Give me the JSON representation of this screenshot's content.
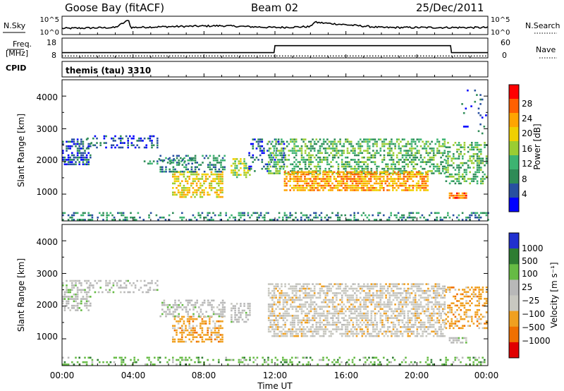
{
  "header": {
    "station": "Goose Bay (fitACF)",
    "beam": "Beam 02",
    "date": "25/Dec/2011"
  },
  "noise_panel": {
    "left_label": "N.Sky",
    "right_label": "N.Search",
    "left_ticks": [
      "10^5",
      "10^0"
    ],
    "right_ticks": [
      "10^5",
      "10^0"
    ]
  },
  "freq_panel": {
    "left_label_line1": "Freq.",
    "left_label_line2": "[MHz]",
    "right_label": "Nave",
    "left_ticks": [
      "18",
      "8"
    ],
    "right_ticks": [
      "60",
      "0"
    ]
  },
  "cpid": {
    "label": "CPID",
    "value": "themis (tau) 3310"
  },
  "time_axis": {
    "label": "Time UT",
    "ticks": [
      "00:00",
      "04:00",
      "08:00",
      "12:00",
      "16:00",
      "20:00",
      "00:00"
    ]
  },
  "power_panel": {
    "ylabel": "Slant Range [km]",
    "yticks": [
      "4000",
      "3000",
      "2000",
      "1000"
    ],
    "colorbar_label": "Power [dB]",
    "colorbar_ticks": [
      "28",
      "24",
      "20",
      "16",
      "12",
      "8",
      "4"
    ]
  },
  "velocity_panel": {
    "ylabel": "Slant Range [km]",
    "yticks": [
      "4000",
      "3000",
      "2000",
      "1000"
    ],
    "colorbar_label": "Velocity [m s⁻¹]",
    "colorbar_ticks": [
      "1000",
      "500",
      "100",
      "25",
      "−25",
      "−100",
      "−500",
      "−1000"
    ]
  },
  "colors": {
    "power_scale": [
      "#0000ff",
      "#2850a0",
      "#2e8b57",
      "#3cb371",
      "#9acd32",
      "#f0d000",
      "#ffa500",
      "#ff6000",
      "#ff0000"
    ],
    "velocity_scale": [
      "#2030d0",
      "#2e7d32",
      "#66bb44",
      "#b8b8b8",
      "#c8c8c0",
      "#f0a020",
      "#f07000",
      "#e00000"
    ]
  },
  "chart_data": [
    {
      "type": "line",
      "title": "N.Sky / N.Search",
      "x_unit": "hours UT",
      "xlim": [
        0,
        24
      ],
      "series": [
        {
          "name": "N.Sky",
          "x": [
            0,
            3,
            3.8,
            3.85,
            6,
            9,
            12,
            14,
            14.2,
            18,
            24
          ],
          "y": [
            0.35,
            0.4,
            0.85,
            0.4,
            0.45,
            0.5,
            0.4,
            0.45,
            0.7,
            0.4,
            0.4
          ]
        }
      ]
    },
    {
      "type": "line",
      "title": "Freq. / Nave",
      "x_unit": "hours UT",
      "xlim": [
        0,
        24
      ],
      "series": [
        {
          "name": "Freq.",
          "x": [
            0,
            11.95,
            12.0,
            21.9,
            21.95,
            24
          ],
          "y": [
            11,
            11,
            16.5,
            16.5,
            11,
            11
          ]
        },
        {
          "name": "Nave",
          "x": [
            0,
            24
          ],
          "y": [
            8,
            8
          ]
        }
      ]
    },
    {
      "type": "heatmap",
      "title": "Power [dB]",
      "x_unit": "hours UT",
      "xlim": [
        0,
        24
      ],
      "ylim": [
        180,
        4500
      ],
      "clim": [
        0,
        32
      ],
      "regions": [
        {
          "t0": 0.0,
          "t1": 1.6,
          "r0": 1900,
          "r1": 2700,
          "level": 1,
          "density": 0.55
        },
        {
          "t0": 1.4,
          "t1": 5.4,
          "r0": 2400,
          "r1": 2800,
          "level": 1,
          "density": 0.3
        },
        {
          "t0": 4.5,
          "t1": 7.4,
          "r0": 1900,
          "r1": 2100,
          "level": 2,
          "density": 0.35
        },
        {
          "t0": 6.2,
          "t1": 9.0,
          "r0": 900,
          "r1": 1700,
          "level": 5,
          "density": 0.55
        },
        {
          "t0": 5.5,
          "t1": 9.2,
          "r0": 1700,
          "r1": 2200,
          "level": 2,
          "density": 0.45
        },
        {
          "t0": 9.5,
          "t1": 10.6,
          "r0": 1500,
          "r1": 2100,
          "level": 4,
          "density": 0.5
        },
        {
          "t0": 10.5,
          "t1": 12.5,
          "r0": 1700,
          "r1": 2700,
          "level": 1,
          "density": 0.3
        },
        {
          "t0": 11.6,
          "t1": 21.6,
          "r0": 1600,
          "r1": 2700,
          "level": 3,
          "density": 0.5
        },
        {
          "t0": 12.5,
          "t1": 20.6,
          "r0": 1100,
          "r1": 1700,
          "level": 6,
          "density": 0.75
        },
        {
          "t0": 21.6,
          "t1": 23.9,
          "r0": 1300,
          "r1": 2600,
          "level": 3,
          "density": 0.45
        },
        {
          "t0": 21.8,
          "t1": 22.8,
          "r0": 850,
          "r1": 1050,
          "level": 7,
          "density": 0.8
        },
        {
          "t0": 22.5,
          "t1": 23.9,
          "r0": 2700,
          "r1": 4200,
          "level": 1,
          "density": 0.08
        },
        {
          "t0": 0.0,
          "t1": 24.0,
          "r0": 180,
          "r1": 450,
          "level": 2,
          "density": 0.35
        }
      ]
    },
    {
      "type": "heatmap",
      "title": "Velocity [m s⁻¹]",
      "x_unit": "hours UT",
      "xlim": [
        0,
        24
      ],
      "ylim": [
        180,
        4500
      ],
      "clim": [
        -1000,
        1000
      ],
      "regions": [
        {
          "t0": 0.0,
          "t1": 1.6,
          "r0": 1900,
          "r1": 2800,
          "level": 3,
          "density": 0.5
        },
        {
          "t0": 1.4,
          "t1": 5.4,
          "r0": 2400,
          "r1": 2800,
          "level": 3,
          "density": 0.3
        },
        {
          "t0": 6.2,
          "t1": 9.0,
          "r0": 900,
          "r1": 1700,
          "level": 5,
          "density": 0.55
        },
        {
          "t0": 5.5,
          "t1": 9.2,
          "r0": 1700,
          "r1": 2200,
          "level": 3,
          "density": 0.45
        },
        {
          "t0": 9.5,
          "t1": 10.6,
          "r0": 1500,
          "r1": 2100,
          "level": 3,
          "density": 0.45
        },
        {
          "t0": 11.6,
          "t1": 21.6,
          "r0": 1100,
          "r1": 2700,
          "level": 4,
          "density": 0.6
        },
        {
          "t0": 21.6,
          "t1": 23.9,
          "r0": 1300,
          "r1": 2600,
          "level": 5,
          "density": 0.4
        },
        {
          "t0": 21.8,
          "t1": 22.8,
          "r0": 850,
          "r1": 1050,
          "level": 3,
          "density": 0.6
        },
        {
          "t0": 0.0,
          "t1": 24.0,
          "r0": 180,
          "r1": 450,
          "level": 2,
          "density": 0.3
        }
      ]
    }
  ]
}
